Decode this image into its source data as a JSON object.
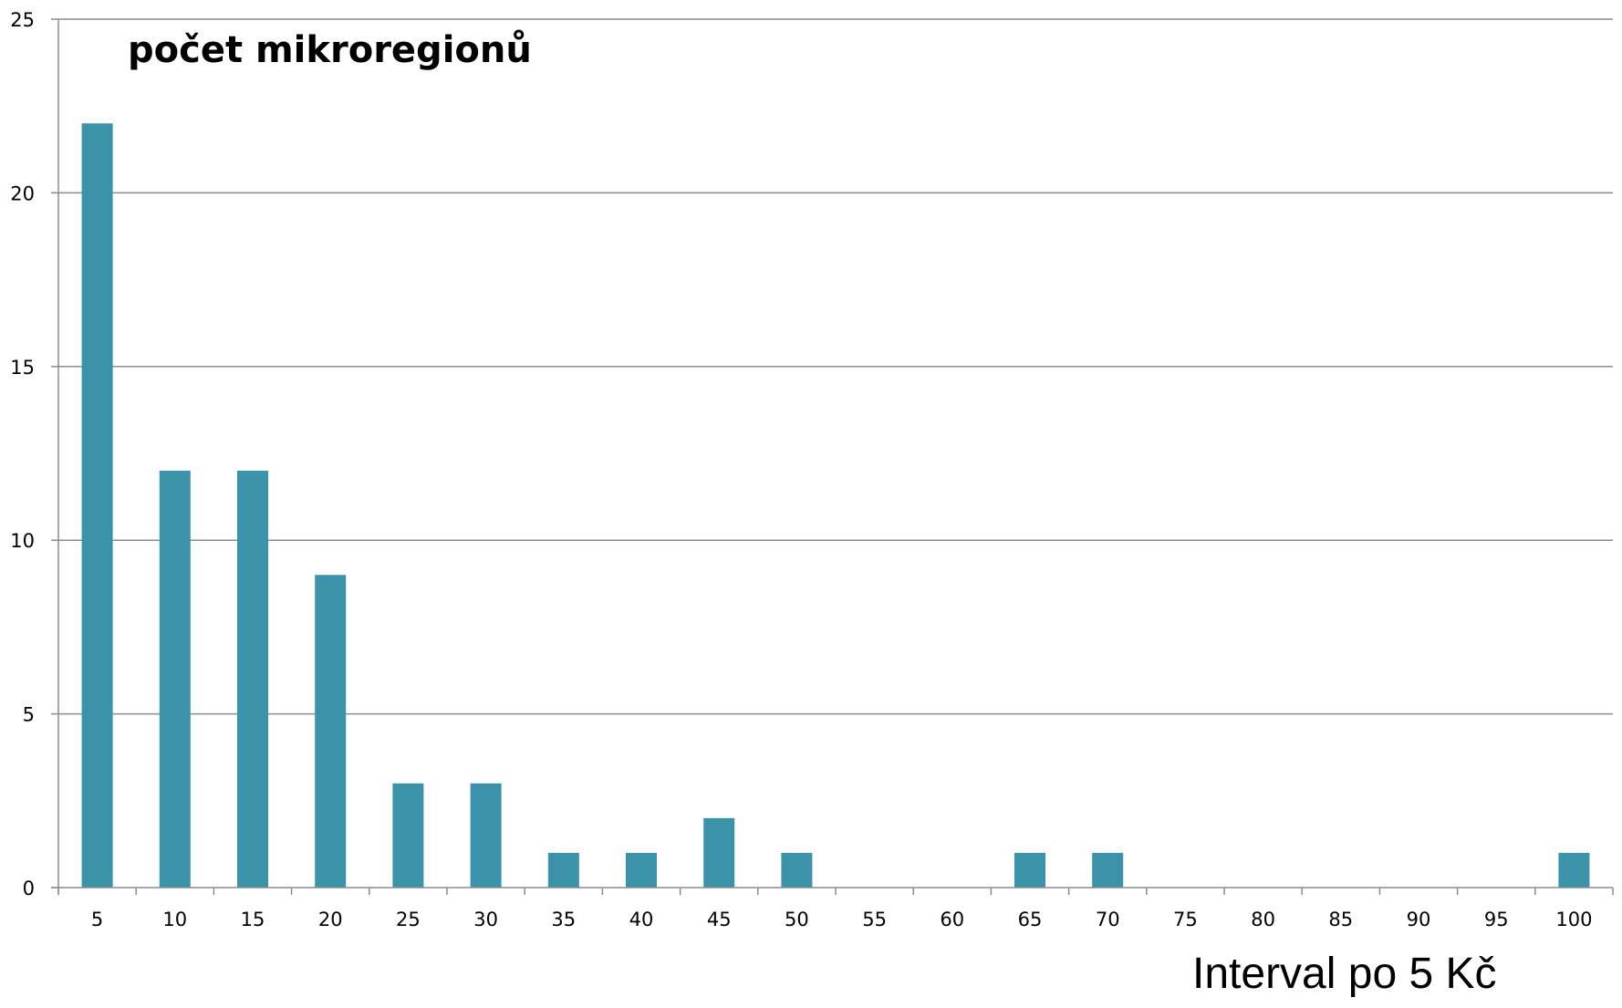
{
  "chart_data": {
    "type": "bar",
    "categories": [
      "5",
      "10",
      "15",
      "20",
      "25",
      "30",
      "35",
      "40",
      "45",
      "50",
      "55",
      "60",
      "65",
      "70",
      "75",
      "80",
      "85",
      "90",
      "95",
      "100"
    ],
    "series": [
      {
        "values": [
          22,
          12,
          12,
          9,
          3,
          3,
          1,
          1,
          2,
          1,
          0,
          0,
          1,
          1,
          0,
          0,
          0,
          0,
          0,
          1
        ]
      }
    ],
    "ylabel": "počet mikroregionů",
    "xlabel": "Interval po 5 Kč",
    "ylim": [
      0,
      25
    ],
    "yticks": [
      "0",
      "5",
      "10",
      "15",
      "20",
      "25"
    ],
    "grid": true,
    "colors": {
      "bar": "#3A93A9",
      "grid": "#8C8C8C",
      "axis": "#8C8C8C"
    }
  }
}
